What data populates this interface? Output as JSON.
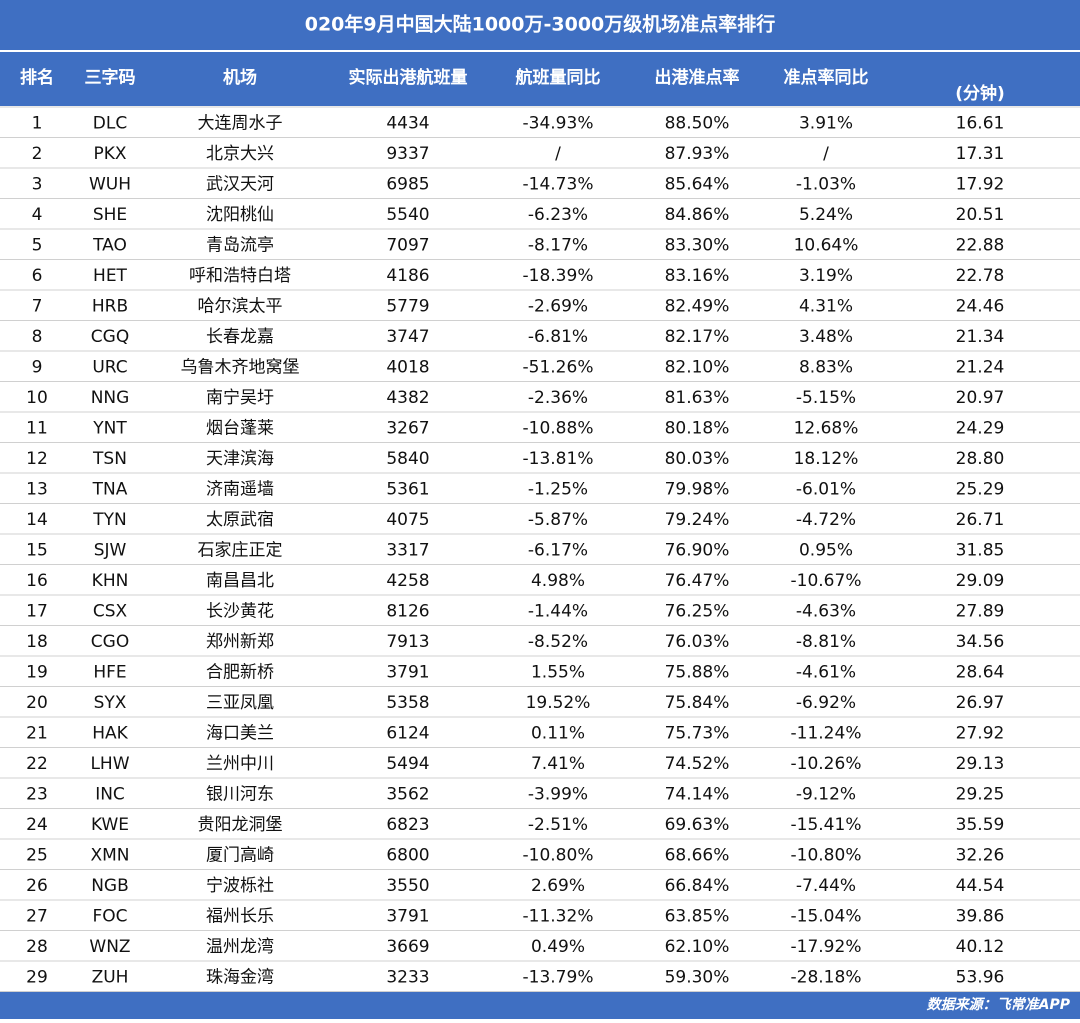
{
  "title": "020年9月中国大陆1000万-3000万级机场准点率排行",
  "table": {
    "header": [
      "排名",
      "三字码",
      "机场",
      "实际出港航班量",
      "航班量同比",
      "出港准点率",
      "准点率同比",
      "(分钟)"
    ],
    "rows": [
      [
        "1",
        "DLC",
        "大连周水子",
        "4434",
        "-34.93%",
        "88.50%",
        "3.91%",
        "16.61"
      ],
      [
        "2",
        "PKX",
        "北京大兴",
        "9337",
        "/",
        "87.93%",
        "/",
        "17.31"
      ],
      [
        "3",
        "WUH",
        "武汉天河",
        "6985",
        "-14.73%",
        "85.64%",
        "-1.03%",
        "17.92"
      ],
      [
        "4",
        "SHE",
        "沈阳桃仙",
        "5540",
        "-6.23%",
        "84.86%",
        "5.24%",
        "20.51"
      ],
      [
        "5",
        "TAO",
        "青岛流亭",
        "7097",
        "-8.17%",
        "83.30%",
        "10.64%",
        "22.88"
      ],
      [
        "6",
        "HET",
        "呼和浩特白塔",
        "4186",
        "-18.39%",
        "83.16%",
        "3.19%",
        "22.78"
      ],
      [
        "7",
        "HRB",
        "哈尔滨太平",
        "5779",
        "-2.69%",
        "82.49%",
        "4.31%",
        "24.46"
      ],
      [
        "8",
        "CGQ",
        "长春龙嘉",
        "3747",
        "-6.81%",
        "82.17%",
        "3.48%",
        "21.34"
      ],
      [
        "9",
        "URC",
        "乌鲁木齐地窝堡",
        "4018",
        "-51.26%",
        "82.10%",
        "8.83%",
        "21.24"
      ],
      [
        "10",
        "NNG",
        "南宁吴圩",
        "4382",
        "-2.36%",
        "81.63%",
        "-5.15%",
        "20.97"
      ],
      [
        "11",
        "YNT",
        "烟台蓬莱",
        "3267",
        "-10.88%",
        "80.18%",
        "12.68%",
        "24.29"
      ],
      [
        "12",
        "TSN",
        "天津滨海",
        "5840",
        "-13.81%",
        "80.03%",
        "18.12%",
        "28.80"
      ],
      [
        "13",
        "TNA",
        "济南遥墙",
        "5361",
        "-1.25%",
        "79.98%",
        "-6.01%",
        "25.29"
      ],
      [
        "14",
        "TYN",
        "太原武宿",
        "4075",
        "-5.87%",
        "79.24%",
        "-4.72%",
        "26.71"
      ],
      [
        "15",
        "SJW",
        "石家庄正定",
        "3317",
        "-6.17%",
        "76.90%",
        "0.95%",
        "31.85"
      ],
      [
        "16",
        "KHN",
        "南昌昌北",
        "4258",
        "4.98%",
        "76.47%",
        "-10.67%",
        "29.09"
      ],
      [
        "17",
        "CSX",
        "长沙黄花",
        "8126",
        "-1.44%",
        "76.25%",
        "-4.63%",
        "27.89"
      ],
      [
        "18",
        "CGO",
        "郑州新郑",
        "7913",
        "-8.52%",
        "76.03%",
        "-8.81%",
        "34.56"
      ],
      [
        "19",
        "HFE",
        "合肥新桥",
        "3791",
        "1.55%",
        "75.88%",
        "-4.61%",
        "28.64"
      ],
      [
        "20",
        "SYX",
        "三亚凤凰",
        "5358",
        "19.52%",
        "75.84%",
        "-6.92%",
        "26.97"
      ],
      [
        "21",
        "HAK",
        "海口美兰",
        "6124",
        "0.11%",
        "75.73%",
        "-11.24%",
        "27.92"
      ],
      [
        "22",
        "LHW",
        "兰州中川",
        "5494",
        "7.41%",
        "74.52%",
        "-10.26%",
        "29.13"
      ],
      [
        "23",
        "INC",
        "银川河东",
        "3562",
        "-3.99%",
        "74.14%",
        "-9.12%",
        "29.25"
      ],
      [
        "24",
        "KWE",
        "贵阳龙洞堡",
        "6823",
        "-2.51%",
        "69.63%",
        "-15.41%",
        "35.59"
      ],
      [
        "25",
        "XMN",
        "厦门高崎",
        "6800",
        "-10.80%",
        "68.66%",
        "-10.80%",
        "32.26"
      ],
      [
        "26",
        "NGB",
        "宁波栎社",
        "3550",
        "2.69%",
        "66.84%",
        "-7.44%",
        "44.54"
      ],
      [
        "27",
        "FOC",
        "福州长乐",
        "3791",
        "-11.32%",
        "63.85%",
        "-15.04%",
        "39.86"
      ],
      [
        "28",
        "WNZ",
        "温州龙湾",
        "3669",
        "0.49%",
        "62.10%",
        "-17.92%",
        "40.12"
      ],
      [
        "29",
        "ZUH",
        "珠海金湾",
        "3233",
        "-13.79%",
        "59.30%",
        "-28.18%",
        "53.96"
      ]
    ]
  },
  "footer": "数据来源：飞常准APP"
}
